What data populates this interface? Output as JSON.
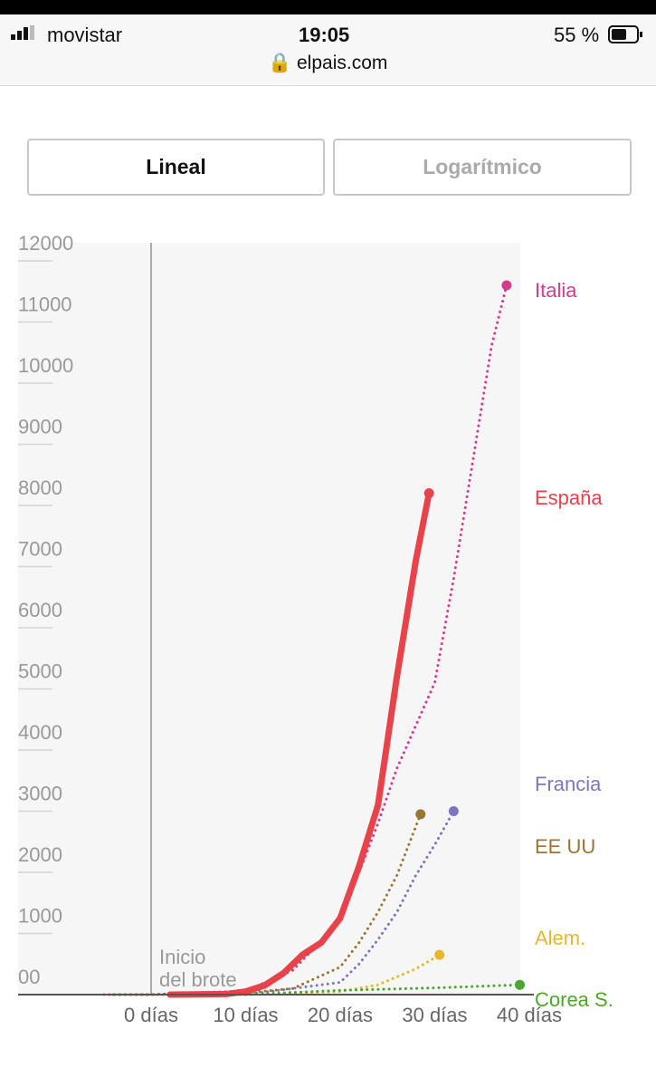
{
  "status_bar": {
    "carrier": "movistar",
    "time": "19:05",
    "battery": "55 %",
    "url": "elpais.com"
  },
  "tabs": [
    "Lineal",
    "Logarítmico"
  ],
  "chart_data": {
    "type": "line",
    "annotation": [
      "Inicio",
      "del brote"
    ],
    "xlim": [
      -14,
      39
    ],
    "ylim": [
      0,
      12000
    ],
    "xticks": [
      {
        "value": 0,
        "label": "0 días"
      },
      {
        "value": 10,
        "label": "10 días"
      },
      {
        "value": 20,
        "label": "20 días"
      },
      {
        "value": 30,
        "label": "30 días"
      },
      {
        "value": 40,
        "label": "40 días"
      }
    ],
    "yticks": [
      {
        "value": 0,
        "label": "00"
      },
      1000,
      2000,
      3000,
      4000,
      5000,
      6000,
      7000,
      8000,
      9000,
      10000,
      11000,
      12000
    ],
    "series": [
      {
        "name": "Italia",
        "color": "#d63a8f",
        "style": "dotted",
        "x": [
          -5,
          0,
          10,
          15,
          20,
          22,
          24,
          26,
          28,
          30,
          32,
          34,
          36,
          37.6
        ],
        "values": [
          0,
          0,
          60,
          400,
          1200,
          2000,
          2800,
          3700,
          4400,
          5100,
          6800,
          8700,
          10600,
          11600
        ]
      },
      {
        "name": "España",
        "color": "#e8434a",
        "style": "solid",
        "x": [
          2,
          8,
          10,
          12,
          14,
          16,
          18,
          20,
          22,
          24,
          26,
          28,
          29.4
        ],
        "values": [
          0,
          10,
          50,
          150,
          350,
          650,
          850,
          1250,
          2100,
          3100,
          5200,
          7100,
          8200
        ]
      },
      {
        "name": "Francia",
        "color": "#7b76c0",
        "style": "dotted",
        "x": [
          10,
          20,
          22,
          24,
          26,
          28,
          30,
          32
        ],
        "values": [
          0,
          200,
          500,
          900,
          1350,
          1950,
          2450,
          3000
        ]
      },
      {
        "name": "EE UU",
        "color": "#9a7535",
        "style": "dotted",
        "x": [
          8,
          15,
          20,
          22,
          24,
          26,
          28.5
        ],
        "values": [
          0,
          100,
          450,
          850,
          1350,
          1950,
          2950
        ]
      },
      {
        "name": "Alem.",
        "color": "#e6b72a",
        "style": "dotted",
        "x": [
          10,
          20,
          24,
          28,
          30.5
        ],
        "values": [
          0,
          50,
          160,
          420,
          650
        ]
      },
      {
        "name": "Corea S.",
        "color": "#4fa62d",
        "style": "dotted",
        "x": [
          -4,
          10,
          20,
          30,
          39
        ],
        "values": [
          0,
          0,
          70,
          110,
          160
        ]
      }
    ]
  }
}
